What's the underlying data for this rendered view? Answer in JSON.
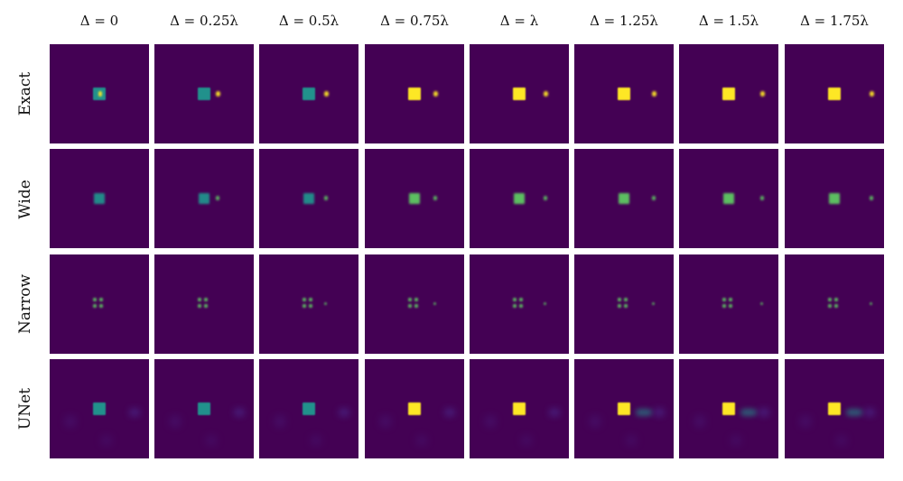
{
  "columns": [
    "Δ = 0",
    "Δ = 0.25λ",
    "Δ = 0.5λ",
    "Δ = 0.75λ",
    "Δ = λ",
    "Δ = 1.25λ",
    "Δ = 1.5λ",
    "Δ = 1.75λ"
  ],
  "rows": [
    "Exact",
    "Wide",
    "Narrow",
    "UNet"
  ],
  "colors": {
    "background": "#440154",
    "teal": "#21918c",
    "green": "#5ec962",
    "yellow": "#fde725",
    "faint": "#4a2a8a"
  }
}
